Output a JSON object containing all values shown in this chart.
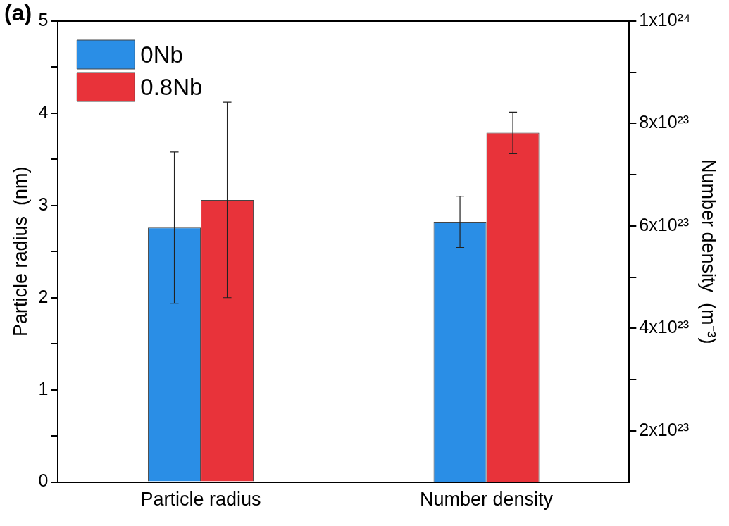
{
  "chart_data": {
    "type": "bar",
    "categories": [
      "Particle radius",
      "Number density"
    ],
    "ylabel": "Particle radius  (nm)",
    "y2label": "Number density  (m⁻³)",
    "annotations": [
      "(a)"
    ],
    "ylim": [
      0,
      5
    ],
    "yticks": [
      0,
      {
        "value": 0.5,
        "label": null
      },
      1,
      {
        "value": 1.5,
        "label": null
      },
      2,
      {
        "value": 2.5,
        "label": null
      },
      3,
      {
        "value": 3.5,
        "label": null
      },
      4,
      {
        "value": 4.5,
        "label": null
      },
      5
    ],
    "y2lim": [
      1e+23,
      1e+24
    ],
    "y2ticks": [
      {
        "value": 2e+23,
        "label": "2x10²³"
      },
      {
        "value": 3e+23,
        "label": null
      },
      {
        "value": 4e+23,
        "label": "4x10²³"
      },
      {
        "value": 5e+23,
        "label": null
      },
      {
        "value": 6e+23,
        "label": "6x10²³"
      },
      {
        "value": 7e+23,
        "label": null
      },
      {
        "value": 8e+23,
        "label": "8x10²³"
      },
      {
        "value": 9e+23,
        "label": null
      },
      {
        "value": 1e+24,
        "label": "1x10²⁴"
      }
    ],
    "legend": "top left",
    "grid": false,
    "series": [
      {
        "name": "0Nb",
        "color": "#2a8ee6",
        "values": [
          2.76,
          null
        ],
        "errors": [
          0.82,
          null
        ]
      },
      {
        "name": "0.8Nb",
        "color": "#e8333a",
        "values": [
          3.06,
          null
        ],
        "errors": [
          1.06,
          null
        ]
      },
      {
        "color": "#2a8ee6",
        "axis": "y2",
        "values": [
          null,
          6.08e+23
        ],
        "errors": [
          null,
          5e+22
        ]
      },
      {
        "color": "#e8333a",
        "axis": "y2",
        "values": [
          null,
          7.82e+23
        ],
        "errors": [
          null,
          4e+22
        ]
      }
    ]
  }
}
